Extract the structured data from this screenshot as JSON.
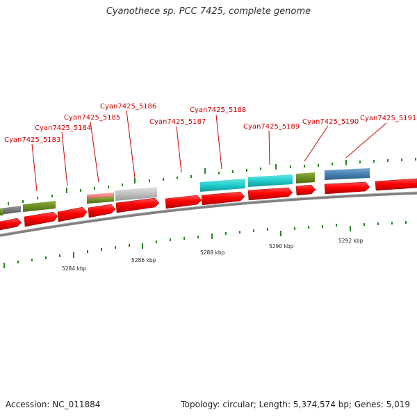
{
  "title": "Cyanothece sp. PCC 7425, complete genome",
  "footer": {
    "accession": "Accession: NC_011884",
    "summary": "Topology: circular; Length: 5,374,574 bp; Genes: 5,019"
  },
  "colors": {
    "forward_gene": "#ff0000",
    "label": "#cc0000",
    "backbone": "#808080",
    "tick": "#228822",
    "cyan_feature": "#22cccc",
    "olive_feature": "#6b8e23",
    "grey_feature": "#c0c0c0",
    "blue_feature": "#4682b4",
    "pink_feature": "#f08080"
  },
  "gene_labels": [
    "Cyan7425_5183",
    "Cyan7425_5184",
    "Cyan7425_5185",
    "Cyan7425_5186",
    "Cyan7425_5187",
    "Cyan7425_5188",
    "Cyan7425_5189",
    "Cyan7425_5190",
    "Cyan7425_5191"
  ],
  "kbp_labels": [
    "5284 kbp",
    "5286 kbp",
    "5288 kbp",
    "5290 kbp",
    "5292 kbp"
  ]
}
